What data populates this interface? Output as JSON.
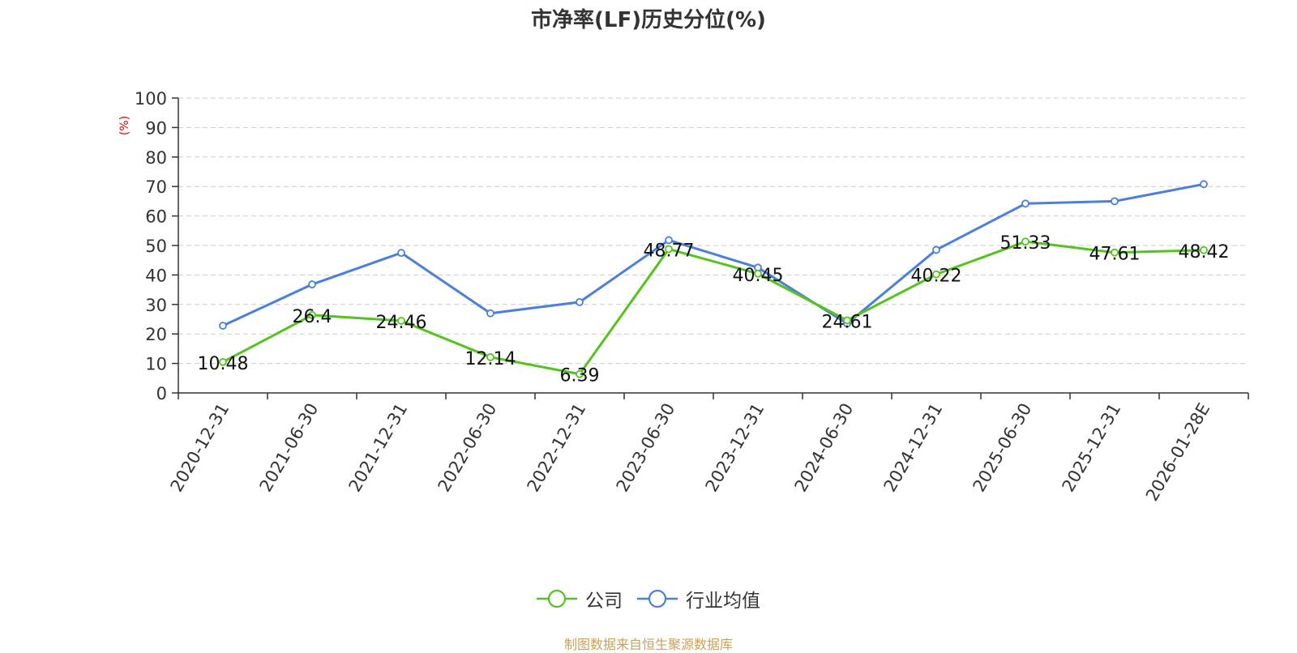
{
  "title": "市净率(LF)历史分位(%)",
  "source_note": "制图数据来自恒生聚源数据库",
  "chart_data": {
    "type": "line",
    "title": "市净率(LF)历史分位(%)",
    "ylabel": "(%)",
    "ylim": [
      0,
      100
    ],
    "yticks": [
      0,
      10,
      20,
      30,
      40,
      50,
      60,
      70,
      80,
      90,
      100
    ],
    "grid": true,
    "legend_position": "bottom",
    "categories": [
      "2020-12-31",
      "2021-06-30",
      "2021-12-31",
      "2022-06-30",
      "2022-12-31",
      "2023-06-30",
      "2023-12-31",
      "2024-06-30",
      "2024-12-31",
      "2025-06-30",
      "2025-12-31",
      "2026-01-28E"
    ],
    "series": [
      {
        "name": "公司",
        "color": "#52c41a",
        "values": [
          10.48,
          26.4,
          24.46,
          12.14,
          6.39,
          48.77,
          40.45,
          24.61,
          40.22,
          51.33,
          47.61,
          48.42
        ],
        "labels": [
          "10.48",
          "26.4",
          "24.46",
          "12.14",
          "6.39",
          "48.77",
          "40.45",
          "24.61",
          "40.22",
          "51.33",
          "47.61",
          "48.42"
        ]
      },
      {
        "name": "行业均值",
        "color": "#4a7fdb",
        "values": [
          22.8,
          36.8,
          47.5,
          27.0,
          30.8,
          51.8,
          42.5,
          23.5,
          48.5,
          64.2,
          65.0,
          70.8
        ]
      }
    ]
  }
}
